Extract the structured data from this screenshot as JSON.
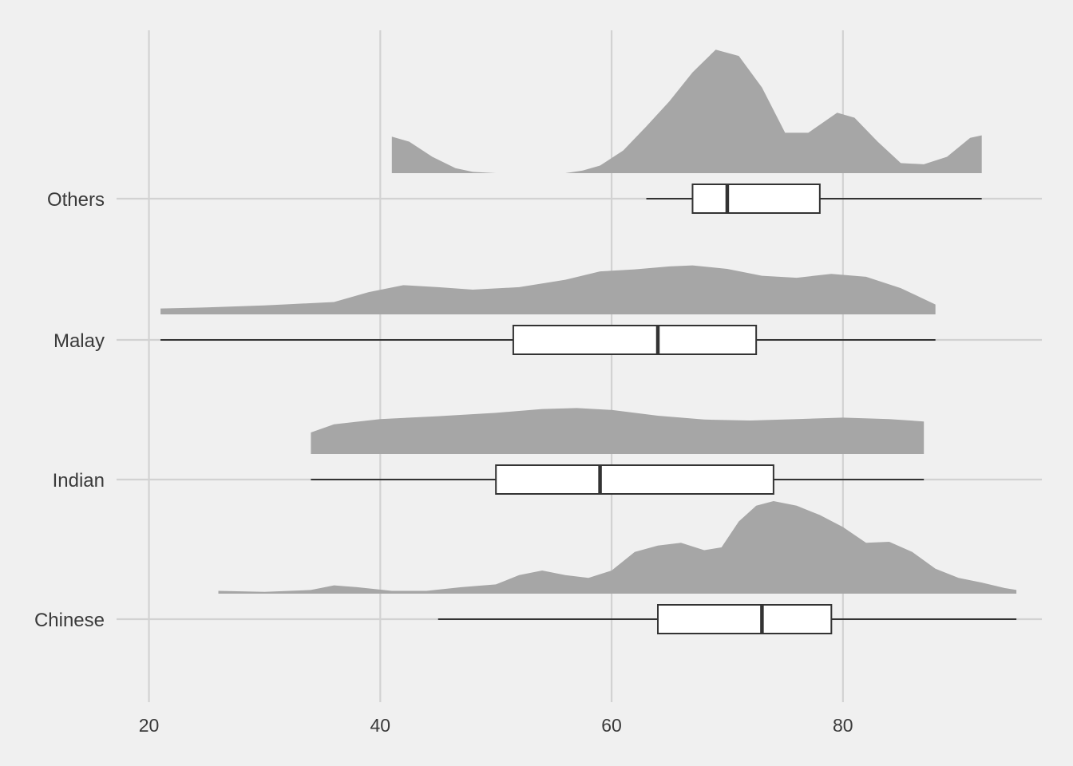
{
  "chart_data": {
    "type": "raincloud",
    "title": "",
    "xlabel": "",
    "ylabel": "",
    "xlim": [
      17.2,
      97.2
    ],
    "x_ticks": [
      20,
      40,
      60,
      80
    ],
    "grid": true,
    "legend": "none",
    "colors": {
      "background": "#f0f0f0",
      "grid": "#d2d2d2",
      "density": "#a6a6a6",
      "box_fill": "#ffffff",
      "box_stroke": "#333333"
    },
    "categories": [
      "Chinese",
      "Indian",
      "Malay",
      "Others"
    ],
    "series": [
      {
        "category": "Chinese",
        "box": {
          "min": 45,
          "q1": 64,
          "median": 73,
          "q3": 79,
          "max": 95
        },
        "range": [
          26,
          95
        ],
        "density": [
          [
            26,
            0.03
          ],
          [
            30,
            0.02
          ],
          [
            34,
            0.04
          ],
          [
            36,
            0.09
          ],
          [
            38,
            0.07
          ],
          [
            41,
            0.03
          ],
          [
            44,
            0.03
          ],
          [
            47,
            0.07
          ],
          [
            50,
            0.1
          ],
          [
            52,
            0.2
          ],
          [
            54,
            0.25
          ],
          [
            56,
            0.2
          ],
          [
            58,
            0.17
          ],
          [
            60,
            0.25
          ],
          [
            62,
            0.45
          ],
          [
            64,
            0.52
          ],
          [
            66,
            0.55
          ],
          [
            68,
            0.47
          ],
          [
            69.5,
            0.5
          ],
          [
            71,
            0.78
          ],
          [
            72.5,
            0.95
          ],
          [
            74,
            1.0
          ],
          [
            76,
            0.95
          ],
          [
            78,
            0.85
          ],
          [
            80,
            0.72
          ],
          [
            82,
            0.55
          ],
          [
            84,
            0.56
          ],
          [
            86,
            0.45
          ],
          [
            88,
            0.27
          ],
          [
            90,
            0.17
          ],
          [
            92,
            0.12
          ],
          [
            94,
            0.06
          ],
          [
            95,
            0.04
          ]
        ]
      },
      {
        "category": "Indian",
        "box": {
          "min": 34,
          "q1": 50,
          "median": 59,
          "q3": 74,
          "max": 87
        },
        "range": [
          34,
          87
        ],
        "density": [
          [
            34,
            0.45
          ],
          [
            36,
            0.62
          ],
          [
            40,
            0.73
          ],
          [
            45,
            0.79
          ],
          [
            50,
            0.86
          ],
          [
            54,
            0.94
          ],
          [
            57,
            0.96
          ],
          [
            60,
            0.92
          ],
          [
            64,
            0.8
          ],
          [
            68,
            0.72
          ],
          [
            72,
            0.7
          ],
          [
            76,
            0.73
          ],
          [
            80,
            0.76
          ],
          [
            84,
            0.73
          ],
          [
            87,
            0.68
          ]
        ]
      },
      {
        "category": "Malay",
        "box": {
          "min": 21,
          "q1": 51.5,
          "median": 64,
          "q3": 72.5,
          "max": 88
        },
        "range": [
          21,
          88
        ],
        "density": [
          [
            21,
            0.12
          ],
          [
            25,
            0.14
          ],
          [
            30,
            0.18
          ],
          [
            36,
            0.25
          ],
          [
            39,
            0.45
          ],
          [
            42,
            0.59
          ],
          [
            45,
            0.55
          ],
          [
            48,
            0.5
          ],
          [
            52,
            0.55
          ],
          [
            56,
            0.7
          ],
          [
            59,
            0.87
          ],
          [
            62,
            0.91
          ],
          [
            65,
            0.97
          ],
          [
            67,
            0.99
          ],
          [
            70,
            0.92
          ],
          [
            73,
            0.78
          ],
          [
            76,
            0.74
          ],
          [
            79,
            0.82
          ],
          [
            82,
            0.76
          ],
          [
            85,
            0.53
          ],
          [
            88,
            0.2
          ]
        ]
      },
      {
        "category": "Others",
        "box": {
          "min": 63,
          "q1": 67,
          "median": 70,
          "q3": 78,
          "max": 92
        },
        "range": [
          41,
          92
        ],
        "density": [
          [
            41,
            0.29
          ],
          [
            42.5,
            0.25
          ],
          [
            44.5,
            0.13
          ],
          [
            46.5,
            0.04
          ],
          [
            48,
            0.01
          ],
          [
            50,
            0.0
          ],
          [
            56,
            0.0
          ],
          [
            57.5,
            0.02
          ],
          [
            59,
            0.06
          ],
          [
            61,
            0.18
          ],
          [
            63,
            0.37
          ],
          [
            65,
            0.57
          ],
          [
            67,
            0.8
          ],
          [
            69,
            0.98
          ],
          [
            71,
            0.93
          ],
          [
            73,
            0.68
          ],
          [
            75,
            0.32
          ],
          [
            77,
            0.32
          ],
          [
            79.5,
            0.48
          ],
          [
            81,
            0.44
          ],
          [
            83,
            0.25
          ],
          [
            85,
            0.08
          ],
          [
            87,
            0.07
          ],
          [
            89,
            0.13
          ],
          [
            91,
            0.28
          ],
          [
            92,
            0.3
          ]
        ]
      }
    ]
  }
}
